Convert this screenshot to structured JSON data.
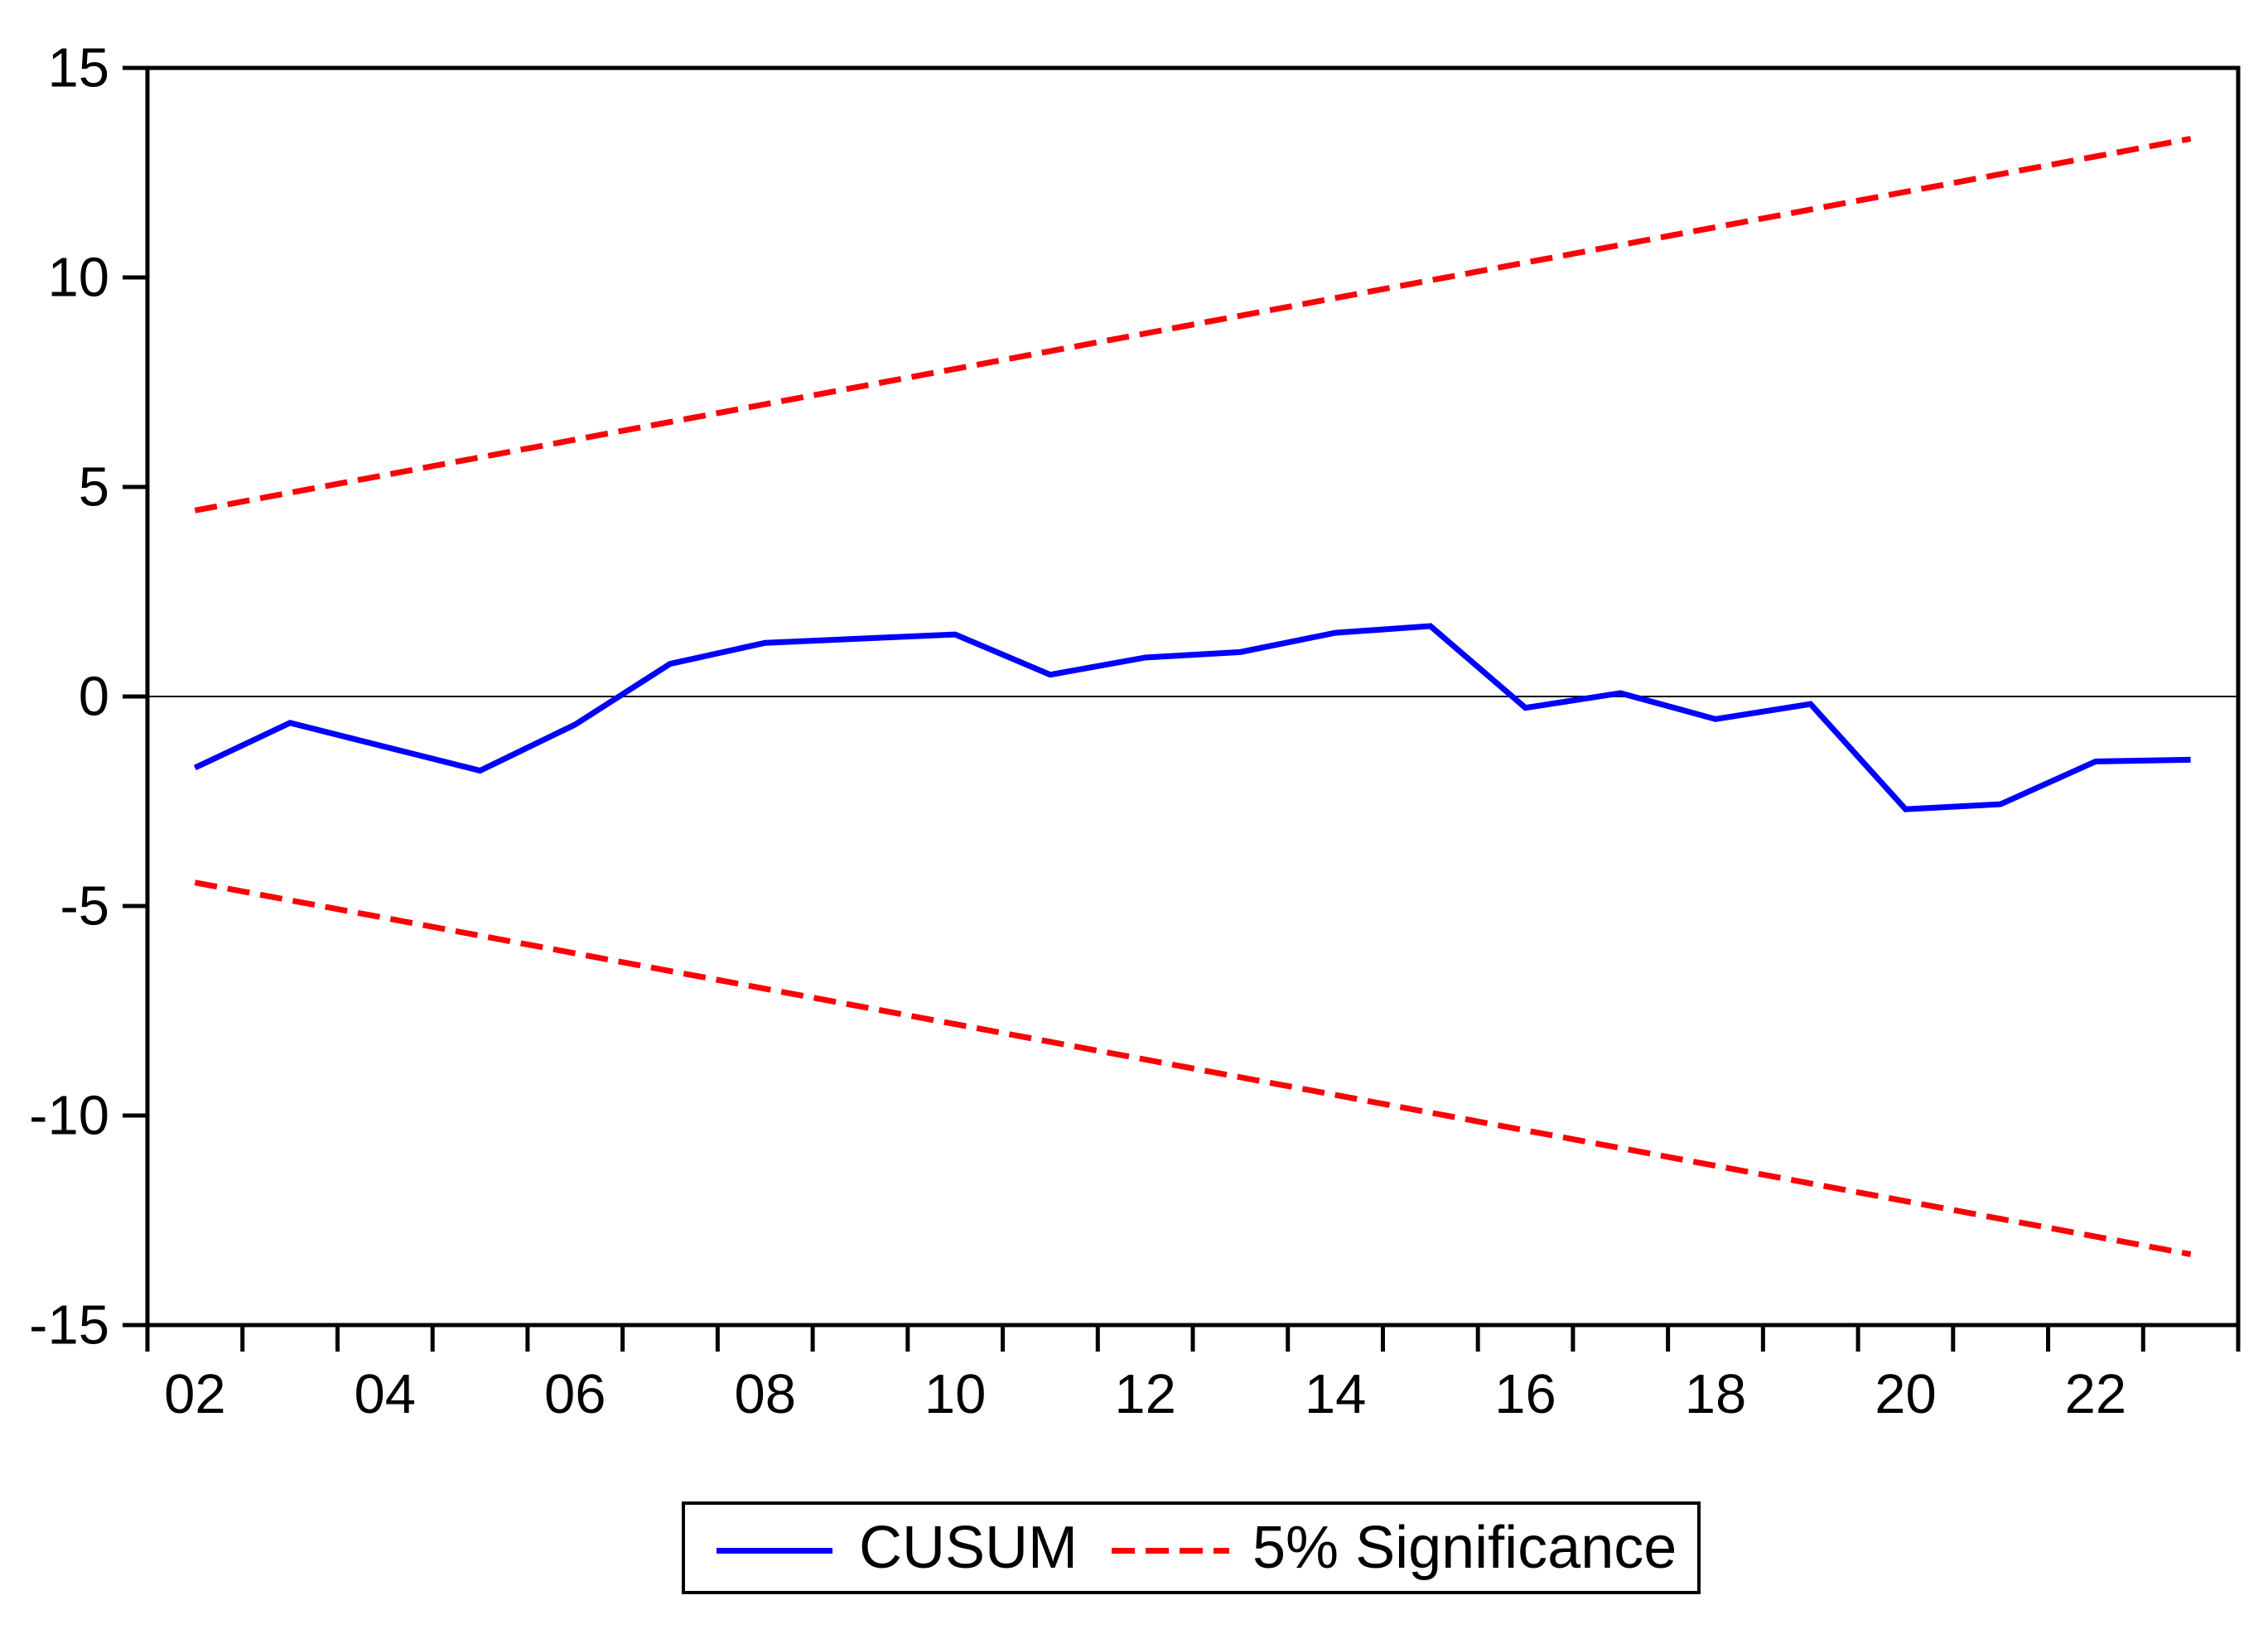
{
  "colors": {
    "cusum_blue": "#0000fe",
    "significance_red": "#fb0207",
    "axis_black": "#000000",
    "background": "#ffffff"
  },
  "chart_data": {
    "type": "line",
    "title": "",
    "xlabel": "",
    "ylabel": "",
    "ylim": [
      -15,
      15
    ],
    "grid": false,
    "zero_line": true,
    "legend_position": "bottom-center",
    "y_tick_labels": [
      "15",
      "10",
      "5",
      "0",
      "-5",
      "-10",
      "-15"
    ],
    "y_tick_values": [
      15,
      10,
      5,
      0,
      -5,
      -10,
      -15
    ],
    "x_years": [
      2002,
      2003,
      2004,
      2005,
      2006,
      2007,
      2008,
      2009,
      2010,
      2011,
      2012,
      2013,
      2014,
      2015,
      2016,
      2017,
      2018,
      2019,
      2020,
      2021,
      2022,
      2023
    ],
    "x_tick_labels": [
      "02",
      "04",
      "06",
      "08",
      "10",
      "12",
      "14",
      "16",
      "18",
      "20",
      "22"
    ],
    "series": [
      {
        "name": "CUSUM",
        "color": "#0000fe",
        "dash": "solid",
        "x": [
          2002,
          2003,
          2004,
          2005,
          2006,
          2007,
          2008,
          2009,
          2010,
          2011,
          2012,
          2013,
          2014,
          2015,
          2016,
          2017,
          2018,
          2019,
          2020,
          2021,
          2022,
          2023
        ],
        "y": [
          -1.7,
          -0.63,
          -1.2,
          -1.77,
          -0.67,
          0.78,
          1.28,
          1.38,
          1.48,
          0.52,
          0.93,
          1.06,
          1.52,
          1.68,
          -0.27,
          0.08,
          -0.54,
          -0.18,
          -2.69,
          -2.57,
          -1.55,
          -1.51
        ]
      },
      {
        "name": "5% Significance (upper bound)",
        "color": "#fb0207",
        "dash": "dashed",
        "x": [
          2002,
          2023
        ],
        "y": [
          4.44,
          13.31
        ]
      },
      {
        "name": "5% Significance (lower bound)",
        "color": "#fb0207",
        "dash": "dashed",
        "x": [
          2002,
          2023
        ],
        "y": [
          -4.44,
          -13.31
        ]
      }
    ],
    "legend": {
      "entries": [
        {
          "label": "CUSUM",
          "color": "#0000fe",
          "dash": "solid"
        },
        {
          "label": "5% Significance",
          "color": "#fb0207",
          "dash": "dashed"
        }
      ]
    }
  }
}
